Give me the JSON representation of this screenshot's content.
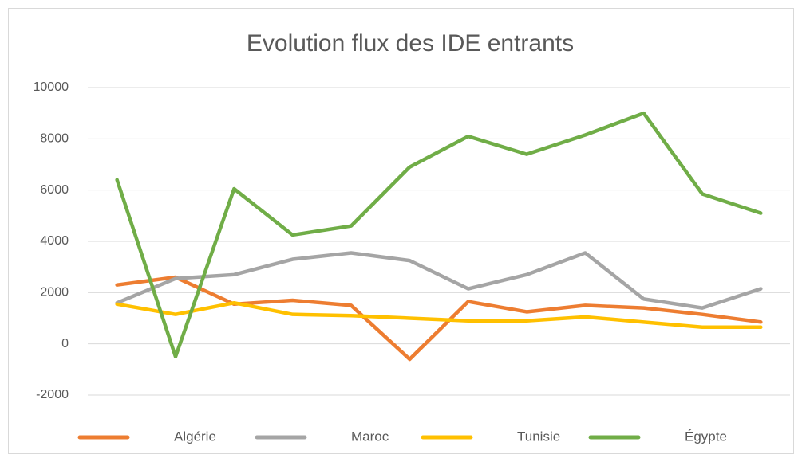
{
  "chart_data": {
    "type": "line",
    "title": "Evolution flux des IDE entrants",
    "categories": [
      null,
      null,
      null,
      null,
      null,
      null,
      null,
      null,
      null,
      null,
      null,
      null
    ],
    "series": [
      {
        "name": "Algérie",
        "color": "#ed7d31",
        "values": [
          2300,
          2600,
          1550,
          1700,
          1500,
          -600,
          1650,
          1250,
          1500,
          1400,
          1150,
          850
        ]
      },
      {
        "name": "Maroc",
        "color": "#a5a5a5",
        "values": [
          1600,
          2550,
          2700,
          3300,
          3550,
          3250,
          2150,
          2700,
          3550,
          1750,
          1400,
          2150
        ]
      },
      {
        "name": "Tunisie",
        "color": "#ffc000",
        "values": [
          1550,
          1150,
          1600,
          1150,
          1100,
          1000,
          900,
          900,
          1050,
          850,
          650,
          650
        ]
      },
      {
        "name": "Égypte",
        "color": "#70ad47",
        "values": [
          6400,
          -500,
          6050,
          4250,
          4600,
          6900,
          8100,
          7400,
          8150,
          9000,
          5850,
          5100
        ]
      }
    ],
    "ylim": [
      -2000,
      10000
    ],
    "yticks": [
      -2000,
      0,
      2000,
      4000,
      6000,
      8000,
      10000
    ],
    "grid": true,
    "legend": "bottom"
  }
}
